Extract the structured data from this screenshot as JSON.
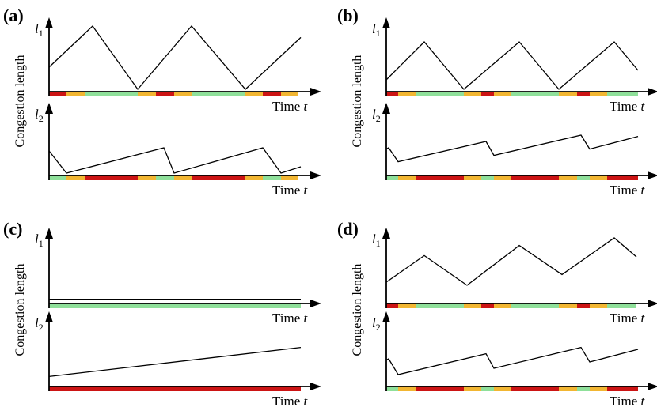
{
  "colors": {
    "red": "#cc1414",
    "yellow": "#f2b632",
    "green": "#8fe09a"
  },
  "panels": [
    {
      "tag": "(a)",
      "ylabel": "Congestion length",
      "xlabel_text": "Time ",
      "xlabel_var": "t",
      "plots": [
        {
          "sym": "l",
          "sub": "1",
          "signal": [
            [
              "red",
              0,
              22
            ],
            [
              "yellow",
              22,
              45
            ],
            [
              "green",
              45,
              112
            ],
            [
              "yellow",
              112,
              135
            ],
            [
              "red",
              135,
              158
            ],
            [
              "yellow",
              158,
              180
            ],
            [
              "green",
              180,
              248
            ],
            [
              "yellow",
              248,
              270
            ],
            [
              "red",
              270,
              293
            ],
            [
              "yellow",
              293,
              315
            ]
          ],
          "curve": [
            [
              0,
              0.35
            ],
            [
              55,
              1.0
            ],
            [
              112,
              0.0
            ],
            [
              180,
              1.0
            ],
            [
              248,
              0.0
            ],
            [
              318,
              0.82
            ]
          ]
        },
        {
          "sym": "l",
          "sub": "2",
          "signal": [
            [
              "green",
              0,
              22
            ],
            [
              "yellow",
              22,
              45
            ],
            [
              "red",
              45,
              112
            ],
            [
              "yellow",
              112,
              135
            ],
            [
              "green",
              135,
              158
            ],
            [
              "yellow",
              158,
              180
            ],
            [
              "red",
              180,
              248
            ],
            [
              "yellow",
              248,
              270
            ],
            [
              "green",
              270,
              293
            ],
            [
              "yellow",
              293,
              315
            ]
          ],
          "curve": [
            [
              0,
              0.35
            ],
            [
              22,
              0.0
            ],
            [
              145,
              0.4
            ],
            [
              158,
              0.0
            ],
            [
              270,
              0.4
            ],
            [
              293,
              0.0
            ],
            [
              318,
              0.1
            ]
          ]
        }
      ]
    },
    {
      "tag": "(b)",
      "ylabel": "Congestion length",
      "xlabel_text": "Time ",
      "xlabel_var": "t",
      "plots": [
        {
          "sym": "l",
          "sub": "1",
          "signal": [
            [
              "red",
              0,
              15
            ],
            [
              "yellow",
              15,
              38
            ],
            [
              "green",
              38,
              98
            ],
            [
              "yellow",
              98,
              120
            ],
            [
              "red",
              120,
              136
            ],
            [
              "yellow",
              136,
              158
            ],
            [
              "green",
              158,
              218
            ],
            [
              "yellow",
              218,
              241
            ],
            [
              "red",
              241,
              257
            ],
            [
              "yellow",
              257,
              279
            ],
            [
              "green",
              279,
              318
            ]
          ],
          "curve": [
            [
              0,
              0.15
            ],
            [
              48,
              0.75
            ],
            [
              98,
              0.0
            ],
            [
              168,
              0.75
            ],
            [
              218,
              0.0
            ],
            [
              288,
              0.75
            ],
            [
              318,
              0.3
            ]
          ]
        },
        {
          "sym": "l",
          "sub": "2",
          "signal": [
            [
              "green",
              0,
              15
            ],
            [
              "yellow",
              15,
              38
            ],
            [
              "red",
              38,
              98
            ],
            [
              "yellow",
              98,
              120
            ],
            [
              "green",
              120,
              136
            ],
            [
              "yellow",
              136,
              158
            ],
            [
              "red",
              158,
              218
            ],
            [
              "yellow",
              218,
              241
            ],
            [
              "green",
              241,
              257
            ],
            [
              "yellow",
              257,
              279
            ],
            [
              "red",
              279,
              318
            ]
          ],
          "curve": [
            [
              0,
              0.38
            ],
            [
              3,
              0.4
            ],
            [
              15,
              0.18
            ],
            [
              126,
              0.5
            ],
            [
              136,
              0.28
            ],
            [
              246,
              0.6
            ],
            [
              257,
              0.38
            ],
            [
              318,
              0.58
            ]
          ]
        }
      ]
    },
    {
      "tag": "(c)",
      "ylabel": "Congestion length",
      "xlabel_text": "Time ",
      "xlabel_var": "t",
      "plots": [
        {
          "sym": "l",
          "sub": "1",
          "signal": [
            [
              "green",
              0,
              318
            ]
          ],
          "curve": [
            [
              0,
              0.03
            ],
            [
              318,
              0.03
            ]
          ]
        },
        {
          "sym": "l",
          "sub": "2",
          "signal": [
            [
              "red",
              0,
              318
            ]
          ],
          "curve": [
            [
              0,
              0.12
            ],
            [
              318,
              0.58
            ]
          ]
        }
      ]
    },
    {
      "tag": "(d)",
      "ylabel": "Congestion length",
      "xlabel_text": "Time ",
      "xlabel_var": "t",
      "plots": [
        {
          "sym": "l",
          "sub": "1",
          "signal": [
            [
              "red",
              0,
              15
            ],
            [
              "yellow",
              15,
              38
            ],
            [
              "green",
              38,
              98
            ],
            [
              "yellow",
              98,
              120
            ],
            [
              "red",
              120,
              136
            ],
            [
              "yellow",
              136,
              158
            ],
            [
              "green",
              158,
              218
            ],
            [
              "yellow",
              218,
              241
            ],
            [
              "red",
              241,
              257
            ],
            [
              "yellow",
              257,
              279
            ],
            [
              "green",
              279,
              315
            ]
          ],
          "curve": [
            [
              0,
              0.3
            ],
            [
              48,
              0.72
            ],
            [
              102,
              0.25
            ],
            [
              168,
              0.88
            ],
            [
              222,
              0.42
            ],
            [
              288,
              1.0
            ],
            [
              316,
              0.7
            ]
          ]
        },
        {
          "sym": "l",
          "sub": "2",
          "signal": [
            [
              "green",
              0,
              15
            ],
            [
              "yellow",
              15,
              38
            ],
            [
              "red",
              38,
              98
            ],
            [
              "yellow",
              98,
              120
            ],
            [
              "green",
              120,
              136
            ],
            [
              "yellow",
              136,
              158
            ],
            [
              "red",
              158,
              218
            ],
            [
              "yellow",
              218,
              241
            ],
            [
              "green",
              241,
              257
            ],
            [
              "yellow",
              257,
              279
            ],
            [
              "red",
              279,
              318
            ]
          ],
          "curve": [
            [
              0,
              0.38
            ],
            [
              3,
              0.4
            ],
            [
              15,
              0.15
            ],
            [
              126,
              0.48
            ],
            [
              136,
              0.25
            ],
            [
              246,
              0.58
            ],
            [
              257,
              0.35
            ],
            [
              318,
              0.55
            ]
          ]
        }
      ]
    }
  ]
}
